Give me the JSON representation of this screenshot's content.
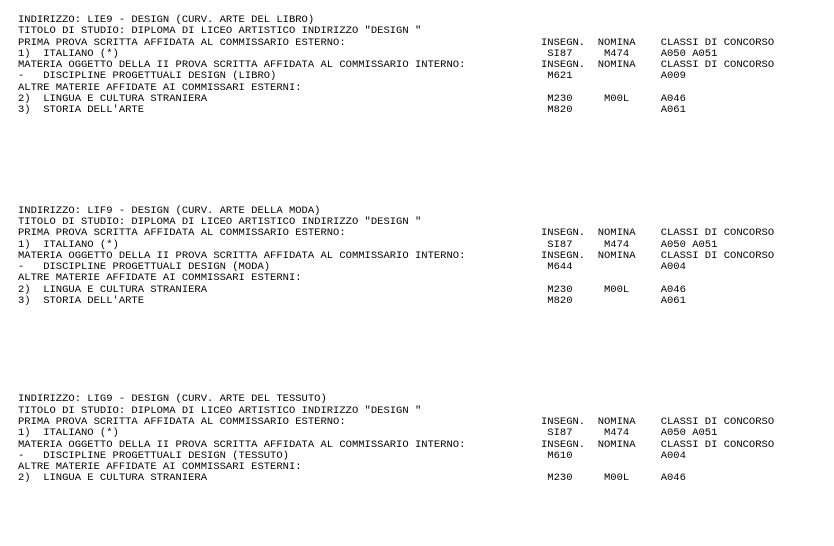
{
  "page": {
    "background": "#ffffff",
    "text_color": "#000000"
  },
  "blocks": [
    {
      "id": "LIE9",
      "lines": [
        [
          {
            "c": 0,
            "t": "INDIRIZZO: LIE9 - DESIGN (CURV. ARTE DEL LIBRO)"
          }
        ],
        [
          {
            "c": 0,
            "t": "TITOLO DI STUDIO: DIPLOMA DI LICEO ARTISTICO INDIRIZZO \"DESIGN \""
          }
        ],
        [
          {
            "c": 0,
            "t": "PRIMA PROVA SCRITTA AFFIDATA AL COMMISSARIO ESTERNO:"
          },
          {
            "c": 83,
            "t": "INSEGN."
          },
          {
            "c": 92,
            "t": "NOMINA"
          },
          {
            "c": 102,
            "t": "CLASSI DI CONCORSO"
          }
        ],
        [
          {
            "c": 0,
            "t": "1)  ITALIANO (*)"
          },
          {
            "c": 84,
            "t": "SI87"
          },
          {
            "c": 93,
            "t": "M474"
          },
          {
            "c": 102,
            "t": "A050"
          },
          {
            "c": 107,
            "t": "A051"
          }
        ],
        [
          {
            "c": 0,
            "t": "MATERIA OGGETTO DELLA II PROVA SCRITTA AFFIDATA AL COMMISSARIO INTERNO:"
          },
          {
            "c": 83,
            "t": "INSEGN."
          },
          {
            "c": 92,
            "t": "NOMINA"
          },
          {
            "c": 102,
            "t": "CLASSI DI CONCORSO"
          }
        ],
        [
          {
            "c": 0,
            "t": "-   DISCIPLINE PROGETTUALI DESIGN (LIBRO)"
          },
          {
            "c": 84,
            "t": "M621"
          },
          {
            "c": 102,
            "t": "A009"
          }
        ],
        [
          {
            "c": 0,
            "t": "ALTRE MATERIE AFFIDATE AI COMMISSARI ESTERNI:"
          }
        ],
        [
          {
            "c": 0,
            "t": "2)  LINGUA E CULTURA STRANIERA"
          },
          {
            "c": 84,
            "t": "M230"
          },
          {
            "c": 93,
            "t": "M00L"
          },
          {
            "c": 102,
            "t": "A046"
          }
        ],
        [
          {
            "c": 0,
            "t": "3)  STORIA DELL'ARTE"
          },
          {
            "c": 84,
            "t": "M820"
          },
          {
            "c": 102,
            "t": "A061"
          }
        ]
      ]
    },
    {
      "id": "LIF9",
      "lines": [
        [
          {
            "c": 0,
            "t": "INDIRIZZO: LIF9 - DESIGN (CURV. ARTE DELLA MODA)"
          }
        ],
        [
          {
            "c": 0,
            "t": "TITOLO DI STUDIO: DIPLOMA DI LICEO ARTISTICO INDIRIZZO \"DESIGN \""
          }
        ],
        [
          {
            "c": 0,
            "t": "PRIMA PROVA SCRITTA AFFIDATA AL COMMISSARIO ESTERNO:"
          },
          {
            "c": 83,
            "t": "INSEGN."
          },
          {
            "c": 92,
            "t": "NOMINA"
          },
          {
            "c": 102,
            "t": "CLASSI DI CONCORSO"
          }
        ],
        [
          {
            "c": 0,
            "t": "1)  ITALIANO (*)"
          },
          {
            "c": 84,
            "t": "SI87"
          },
          {
            "c": 93,
            "t": "M474"
          },
          {
            "c": 102,
            "t": "A050"
          },
          {
            "c": 107,
            "t": "A051"
          }
        ],
        [
          {
            "c": 0,
            "t": "MATERIA OGGETTO DELLA II PROVA SCRITTA AFFIDATA AL COMMISSARIO INTERNO:"
          },
          {
            "c": 83,
            "t": "INSEGN."
          },
          {
            "c": 92,
            "t": "NOMINA"
          },
          {
            "c": 102,
            "t": "CLASSI DI CONCORSO"
          }
        ],
        [
          {
            "c": 0,
            "t": "-   DISCIPLINE PROGETTUALI DESIGN (MODA)"
          },
          {
            "c": 84,
            "t": "M644"
          },
          {
            "c": 102,
            "t": "A004"
          }
        ],
        [
          {
            "c": 0,
            "t": "ALTRE MATERIE AFFIDATE AI COMMISSARI ESTERNI:"
          }
        ],
        [
          {
            "c": 0,
            "t": "2)  LINGUA E CULTURA STRANIERA"
          },
          {
            "c": 84,
            "t": "M230"
          },
          {
            "c": 93,
            "t": "M00L"
          },
          {
            "c": 102,
            "t": "A046"
          }
        ],
        [
          {
            "c": 0,
            "t": "3)  STORIA DELL'ARTE"
          },
          {
            "c": 84,
            "t": "M820"
          },
          {
            "c": 102,
            "t": "A061"
          }
        ]
      ]
    },
    {
      "id": "LIG9",
      "lines": [
        [
          {
            "c": 0,
            "t": "INDIRIZZO: LIG9 - DESIGN (CURV. ARTE DEL TESSUTO)"
          }
        ],
        [
          {
            "c": 0,
            "t": "TITOLO DI STUDIO: DIPLOMA DI LICEO ARTISTICO INDIRIZZO \"DESIGN \""
          }
        ],
        [
          {
            "c": 0,
            "t": "PRIMA PROVA SCRITTA AFFIDATA AL COMMISSARIO ESTERNO:"
          },
          {
            "c": 83,
            "t": "INSEGN."
          },
          {
            "c": 92,
            "t": "NOMINA"
          },
          {
            "c": 102,
            "t": "CLASSI DI CONCORSO"
          }
        ],
        [
          {
            "c": 0,
            "t": "1)  ITALIANO (*)"
          },
          {
            "c": 84,
            "t": "SI87"
          },
          {
            "c": 93,
            "t": "M474"
          },
          {
            "c": 102,
            "t": "A050"
          },
          {
            "c": 107,
            "t": "A051"
          }
        ],
        [
          {
            "c": 0,
            "t": "MATERIA OGGETTO DELLA II PROVA SCRITTA AFFIDATA AL COMMISSARIO INTERNO:"
          },
          {
            "c": 83,
            "t": "INSEGN."
          },
          {
            "c": 92,
            "t": "NOMINA"
          },
          {
            "c": 102,
            "t": "CLASSI DI CONCORSO"
          }
        ],
        [
          {
            "c": 0,
            "t": "-   DISCIPLINE PROGETTUALI DESIGN (TESSUTO)"
          },
          {
            "c": 84,
            "t": "M610"
          },
          {
            "c": 102,
            "t": "A004"
          }
        ],
        [
          {
            "c": 0,
            "t": "ALTRE MATERIE AFFIDATE AI COMMISSARI ESTERNI:"
          }
        ],
        [
          {
            "c": 0,
            "t": "2)  LINGUA E CULTURA STRANIERA"
          },
          {
            "c": 84,
            "t": "M230"
          },
          {
            "c": 93,
            "t": "M00L"
          },
          {
            "c": 102,
            "t": "A046"
          }
        ]
      ]
    }
  ]
}
